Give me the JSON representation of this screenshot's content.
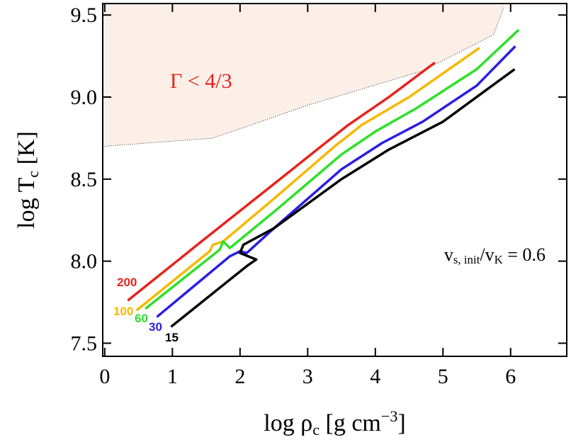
{
  "chart_data": {
    "type": "line",
    "xlabel": [
      {
        "text": "log ρ"
      },
      {
        "text": "c",
        "shift": "sub"
      },
      {
        "text": " [g cm"
      },
      {
        "text": "−3",
        "shift": "super"
      },
      {
        "text": "]"
      }
    ],
    "ylabel": [
      {
        "text": "log T"
      },
      {
        "text": "c",
        "shift": "sub"
      },
      {
        "text": " [K]"
      }
    ],
    "xlim": [
      -0.03,
      6.83
    ],
    "ylim": [
      7.42,
      9.57
    ],
    "xticks": [
      0,
      1,
      2,
      3,
      4,
      5,
      6
    ],
    "yticks": [
      {
        "value": 7.5,
        "label": "7.5"
      },
      {
        "value": 8,
        "label": "8.0"
      },
      {
        "value": 8.5,
        "label": "8.5"
      },
      {
        "value": 9,
        "label": "9.0"
      },
      {
        "value": 9.5,
        "label": "9.5"
      }
    ],
    "region": {
      "label": "Γ < 4/3",
      "color": "#fcefe8",
      "label_color": "#e8221c",
      "x": [
        0,
        1.6,
        3,
        4.7,
        5.75,
        5.9
      ],
      "y": [
        8.7,
        8.75,
        8.95,
        9.16,
        9.38,
        9.55
      ]
    },
    "annotation": [
      {
        "text": "v"
      },
      {
        "text": "s, init",
        "shift": "sub"
      },
      {
        "text": "/v"
      },
      {
        "text": "K",
        "shift": "sub"
      },
      {
        "text": " = 0.6"
      }
    ],
    "series": [
      {
        "name": "200",
        "color": "#e8221c",
        "x": [
          0.34,
          1.4,
          2.5,
          3.2,
          3.6,
          4.2,
          4.88
        ],
        "y": [
          7.76,
          8.11,
          8.47,
          8.7,
          8.83,
          9.0,
          9.21
        ]
      },
      {
        "name": "100",
        "color": "#f5b800",
        "x": [
          0.47,
          1.55,
          1.6,
          1.75,
          2.5,
          3.4,
          3.8,
          4.5,
          5.54
        ],
        "y": [
          7.7,
          8.06,
          8.1,
          8.12,
          8.38,
          8.7,
          8.83,
          9.0,
          9.3
        ]
      },
      {
        "name": "60",
        "color": "#2ee02a",
        "x": [
          0.6,
          1.7,
          1.75,
          1.85,
          2.5,
          3.5,
          4,
          4.6,
          5.5,
          6.12
        ],
        "y": [
          7.71,
          8.07,
          8.12,
          8.08,
          8.3,
          8.65,
          8.79,
          8.93,
          9.17,
          9.41
        ]
      },
      {
        "name": "30",
        "color": "#2a1ee0",
        "x": [
          0.77,
          1.85,
          2.0,
          2.1,
          2.5,
          3.5,
          4.1,
          4.7,
          5.5,
          6.07
        ],
        "y": [
          7.66,
          8.03,
          8.06,
          8.05,
          8.2,
          8.56,
          8.72,
          8.85,
          9.07,
          9.31
        ]
      },
      {
        "name": "15",
        "color": "#000000",
        "x": [
          0.98,
          2.1,
          2.24,
          2.0,
          2.05,
          2.5,
          3.5,
          4.2,
          5,
          6.06
        ],
        "y": [
          7.6,
          7.97,
          8.01,
          8.05,
          8.1,
          8.2,
          8.5,
          8.68,
          8.85,
          9.17
        ]
      }
    ]
  }
}
